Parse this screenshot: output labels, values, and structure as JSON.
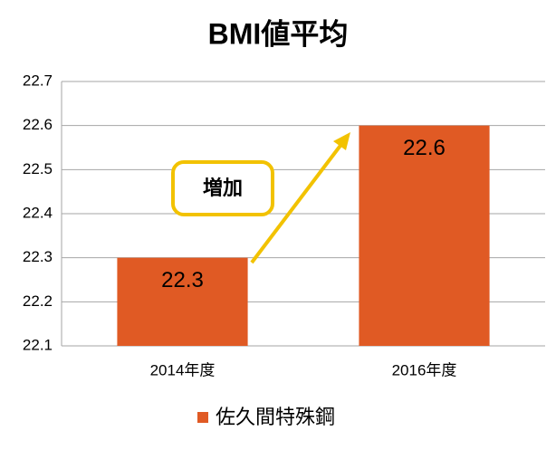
{
  "chart_data": {
    "type": "bar",
    "title": "BMI値平均",
    "categories": [
      "2014年度",
      "2016年度"
    ],
    "series": [
      {
        "name": "佐久間特殊鋼",
        "color": "#e05a24",
        "values": [
          22.3,
          22.6
        ]
      }
    ],
    "ylim": [
      22.1,
      22.7
    ],
    "yticks": [
      22.1,
      22.2,
      22.3,
      22.4,
      22.5,
      22.6,
      22.7
    ],
    "grid": true,
    "legend": "bottom",
    "annotation": "増加"
  }
}
